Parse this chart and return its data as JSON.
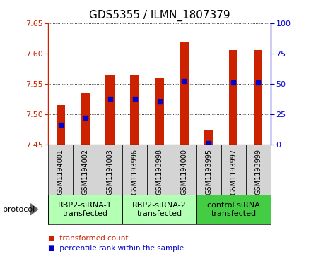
{
  "title": "GDS5355 / ILMN_1807379",
  "samples": [
    "GSM1194001",
    "GSM1194002",
    "GSM1194003",
    "GSM1193996",
    "GSM1193998",
    "GSM1194000",
    "GSM1193995",
    "GSM1193997",
    "GSM1193999"
  ],
  "bar_bottom": 7.45,
  "bar_tops": [
    7.515,
    7.535,
    7.565,
    7.565,
    7.56,
    7.62,
    7.475,
    7.605,
    7.605
  ],
  "blue_dots": [
    7.483,
    7.494,
    7.526,
    7.525,
    7.521,
    7.555,
    7.452,
    7.552,
    7.552
  ],
  "ylim_left": [
    7.45,
    7.65
  ],
  "ylim_right": [
    0,
    100
  ],
  "yticks_left": [
    7.45,
    7.5,
    7.55,
    7.6,
    7.65
  ],
  "yticks_right": [
    0,
    25,
    50,
    75,
    100
  ],
  "bar_color": "#cc2200",
  "dot_color": "#0000cc",
  "groups": [
    {
      "label": "RBP2-siRNA-1\ntransfected",
      "start": 0,
      "end": 3,
      "color": "#b3ffb3"
    },
    {
      "label": "RBP2-siRNA-2\ntransfected",
      "start": 3,
      "end": 6,
      "color": "#b3ffb3"
    },
    {
      "label": "control siRNA\ntransfected",
      "start": 6,
      "end": 9,
      "color": "#44cc44"
    }
  ],
  "protocol_label": "protocol",
  "legend_items": [
    {
      "color": "#cc2200",
      "label": "transformed count"
    },
    {
      "color": "#0000cc",
      "label": "percentile rank within the sample"
    }
  ],
  "bar_width": 0.35,
  "label_fontsize": 7,
  "group_fontsize": 8,
  "title_fontsize": 11
}
